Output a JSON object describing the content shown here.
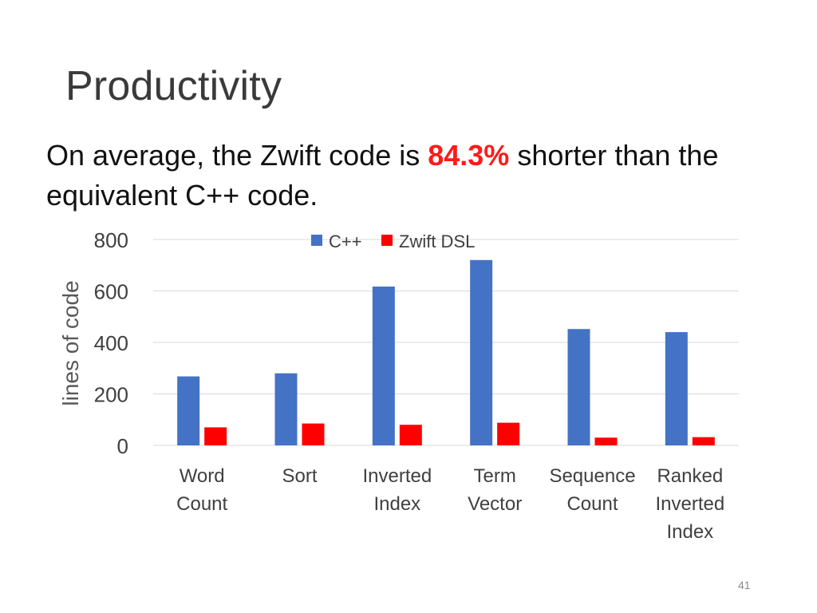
{
  "slide": {
    "title": "Productivity",
    "subtitle_before": "On average, the Zwift code is ",
    "subtitle_highlight": "84.3%",
    "subtitle_after": " shorter than the equivalent C++ code.",
    "page_number": "41"
  },
  "colors": {
    "cpp": "#4472C4",
    "zwift": "#FF0000",
    "highlight": "#FF1A1A",
    "grid": "#D9D9D9",
    "axis_text": "#404040",
    "ylabel_text": "#595959"
  },
  "chart_data": {
    "type": "bar",
    "title": "",
    "xlabel": "",
    "ylabel": "lines of code",
    "ylim": [
      0,
      800
    ],
    "yticks": [
      0,
      200,
      400,
      600,
      800
    ],
    "grid": true,
    "legend_position": "top",
    "categories": [
      [
        "Word",
        "Count"
      ],
      [
        "Sort"
      ],
      [
        "Inverted",
        "Index"
      ],
      [
        "Term",
        "Vector"
      ],
      [
        "Sequence",
        "Count"
      ],
      [
        "Ranked",
        "Inverted",
        "Index"
      ]
    ],
    "series": [
      {
        "name": "C++",
        "color": "#4472C4",
        "values": [
          268,
          280,
          617,
          720,
          452,
          440
        ]
      },
      {
        "name": "Zwift DSL",
        "color": "#FF0000",
        "values": [
          70,
          85,
          80,
          88,
          30,
          32
        ]
      }
    ]
  }
}
